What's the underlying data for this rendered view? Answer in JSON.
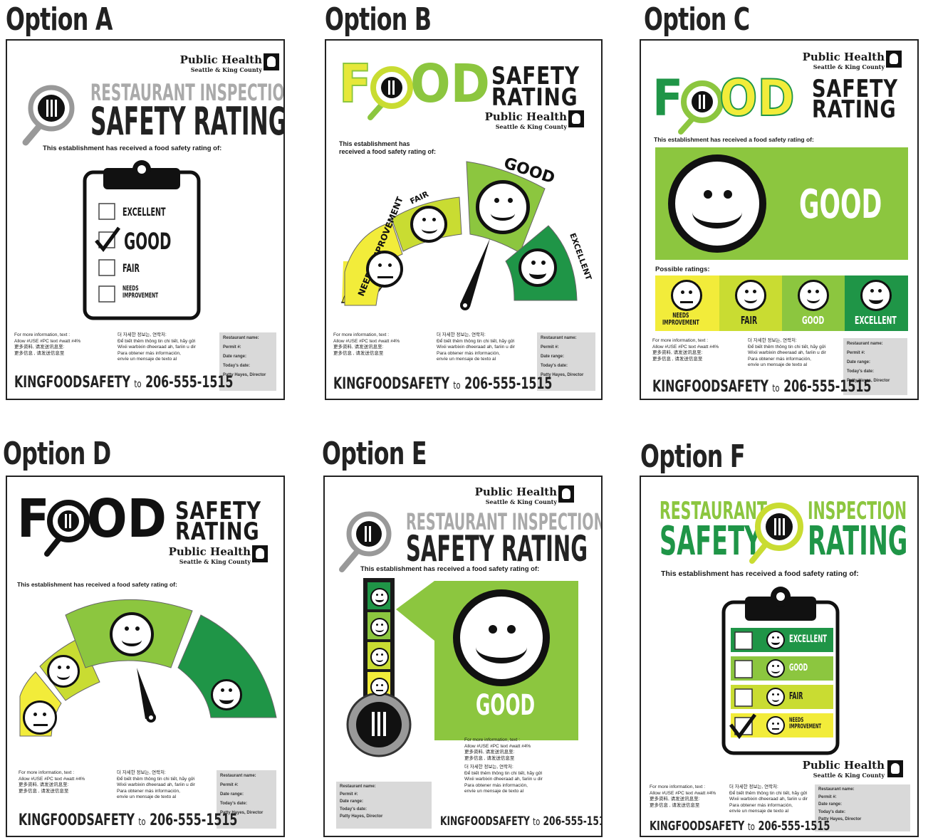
{
  "options": [
    {
      "label": "Option A",
      "variant": "A"
    },
    {
      "label": "Option B",
      "variant": "B"
    },
    {
      "label": "Option C",
      "variant": "C"
    },
    {
      "label": "Option D",
      "variant": "D"
    },
    {
      "label": "Option E",
      "variant": "E"
    },
    {
      "label": "Option F",
      "variant": "F"
    }
  ],
  "poster": {
    "ph_name": "Public Health",
    "ph_sub": "Seattle & King County",
    "title_restaurant": "RESTAURANT INSPECTION",
    "title_safety_rating": "SAFETY RATING",
    "f_restaurant": "RESTAURANT",
    "f_inspection": "INSPECTION",
    "f_safety": "SAFETY",
    "f_rating": "RATING",
    "food_f": "F",
    "food_od": "OD",
    "food_safety": "SAFETY",
    "food_rating": "RATING",
    "establishment": "This establishment has received a food safety rating of:",
    "establishment_b1": "This establishment has",
    "establishment_b2": "received a food safety rating of:",
    "possible": "Possible ratings:",
    "ratings": {
      "excellent": "EXCELLENT",
      "good": "GOOD",
      "fair": "FAIR",
      "needs": "NEEDS IMPROVEMENT",
      "needs1": "NEEDS",
      "needs2": "IMPROVEMENT"
    },
    "info_left": "For more information, text :\nAllow #USE #PC text #watt #4%\n更多资料, 请发送讯息至:\n更多信息 , 请发送信息至",
    "info_right": "더 자세한 정보는, 연락처:\nĐể biết thêm thông tin chi tiết, hãy gửi\nWixii warbixin dheeraad ah, fariin u dir\nPara obtener más información,\nenvíe un mensaje de texto al",
    "grey_fields": "Restaurant name:\nPermit #:\nDate range:\nToday's date:\nPatty Hayes, Director",
    "kfs_main": "KINGFOODSAFETY",
    "kfs_to": "to",
    "kfs_phone": "206-555-1515"
  },
  "colors": {
    "yellow": "#f2ec3a",
    "lime": "#c9dc32",
    "green": "#8cc63f",
    "dark_green": "#1f9547",
    "grey": "#a8a8a8"
  }
}
